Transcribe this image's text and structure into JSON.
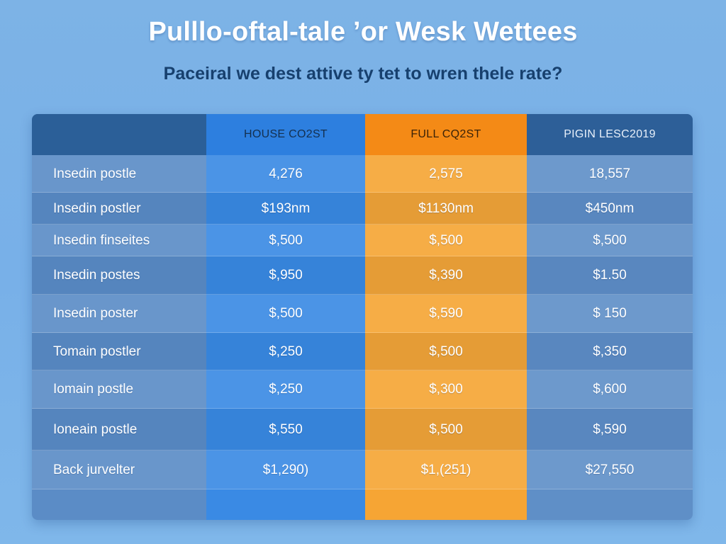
{
  "page": {
    "title": "Pulllo-oftal-tale ’or Wesk Wettees",
    "subtitle": "Paceiral we dest attive ty tet to wren thele  rate?"
  },
  "chart_data": {
    "type": "table",
    "title": "Pulllo-oftal-tale ’or Wesk Wettees",
    "subtitle": "Paceiral we dest attive ty tet to wren thele  rate?",
    "columns": [
      "",
      "HOUSE CO2ST",
      "FULL CQ2ST",
      "PIGIN LESC2019"
    ],
    "rows": [
      {
        "label": "Insedin postle",
        "cells": [
          "4,276",
          "2,575",
          "18,557"
        ]
      },
      {
        "label": "Insedin postler",
        "cells": [
          "$193nm",
          "$1130nm",
          "$450nm"
        ]
      },
      {
        "label": "Insedin finseites",
        "cells": [
          "$,500",
          "$,500",
          "$,500"
        ]
      },
      {
        "label": "Insedin postes",
        "cells": [
          "$,950",
          "$,390",
          "$1.50"
        ]
      },
      {
        "label": "Insedin poster",
        "cells": [
          "$,500",
          "$,590",
          "$ 150"
        ]
      },
      {
        "label": "Tomain postler",
        "cells": [
          "$,250",
          "$,500",
          "$,350"
        ]
      },
      {
        "label": "Iomain postle",
        "cells": [
          "$,250",
          "$,300",
          "$,600"
        ]
      },
      {
        "label": "Ioneain postle",
        "cells": [
          "$,550",
          "$,500",
          "$,590"
        ]
      },
      {
        "label": "Back jurvelter",
        "cells": [
          "$1,290)",
          "$1,(251)",
          "$27,550"
        ]
      }
    ],
    "column_colors": [
      "#5b8cc6",
      "#3a8ae4",
      "#f6a534",
      "#5f8fc7"
    ],
    "header_colors": [
      "#2b5f98",
      "#2d7fdf",
      "#f48a16",
      "#2d5f98"
    ]
  }
}
